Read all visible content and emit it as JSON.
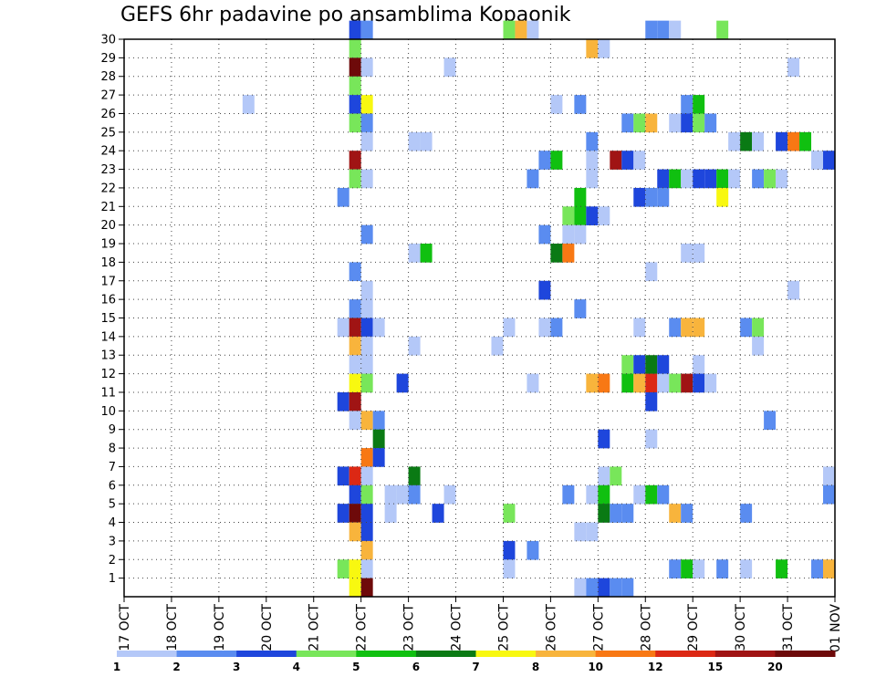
{
  "chart_data": {
    "type": "heatmap",
    "title": "GEFS 6hr padavine po ansamblima Kopaonik",
    "x_ticks": [
      "17 OCT",
      "18 OCT",
      "19 OCT",
      "20 OCT",
      "21 OCT",
      "22 OCT",
      "23 OCT",
      "24 OCT",
      "25 OCT",
      "26 OCT",
      "27 OCT",
      "28 OCT",
      "29 OCT",
      "30 OCT",
      "31 OCT",
      "01 NOV"
    ],
    "y_ticks": [
      "1",
      "2",
      "3",
      "4",
      "5",
      "6",
      "7",
      "8",
      "9",
      "10",
      "11",
      "12",
      "13",
      "14",
      "15",
      "16",
      "17",
      "18",
      "19",
      "20",
      "21",
      "22",
      "23",
      "24",
      "25",
      "26",
      "27",
      "28",
      "29",
      "30"
    ],
    "x_range": [
      "17 OCT",
      "01 NOV"
    ],
    "y_range": [
      0,
      30
    ],
    "grid": true,
    "time_step_hours": 6,
    "colorbar": {
      "labels": [
        "1",
        "2",
        "3",
        "4",
        "5",
        "6",
        "7",
        "8",
        "10",
        "12",
        "15",
        "20"
      ],
      "colors": [
        "#b4c8f8",
        "#5a8cf0",
        "#1e46dc",
        "#78e65a",
        "#10c010",
        "#0a7a14",
        "#f8f810",
        "#f8b43c",
        "#f87814",
        "#dc2814",
        "#a01414",
        "#6e0a0a"
      ]
    },
    "cells": [
      {
        "d": "21 OCT",
        "h": 18,
        "m": 30,
        "c": 2
      },
      {
        "d": "22 OCT",
        "h": 0,
        "m": 30,
        "c": 1
      },
      {
        "d": "25 OCT",
        "h": 0,
        "m": 30,
        "c": 3
      },
      {
        "d": "25 OCT",
        "h": 6,
        "m": 30,
        "c": 7
      },
      {
        "d": "25 OCT",
        "h": 12,
        "m": 30,
        "c": 0
      },
      {
        "d": "28 OCT",
        "h": 0,
        "m": 30,
        "c": 1
      },
      {
        "d": "28 OCT",
        "h": 6,
        "m": 30,
        "c": 1
      },
      {
        "d": "28 OCT",
        "h": 12,
        "m": 30,
        "c": 0
      },
      {
        "d": "29 OCT",
        "h": 12,
        "m": 30,
        "c": 3
      },
      {
        "d": "21 OCT",
        "h": 18,
        "m": 29,
        "c": 3
      },
      {
        "d": "26 OCT",
        "h": 18,
        "m": 29,
        "c": 7
      },
      {
        "d": "27 OCT",
        "h": 0,
        "m": 29,
        "c": 0
      },
      {
        "d": "21 OCT",
        "h": 18,
        "m": 28,
        "c": 11
      },
      {
        "d": "22 OCT",
        "h": 0,
        "m": 28,
        "c": 0
      },
      {
        "d": "23 OCT",
        "h": 18,
        "m": 28,
        "c": 0
      },
      {
        "d": "31 OCT",
        "h": 0,
        "m": 28,
        "c": 0
      },
      {
        "d": "21 OCT",
        "h": 18,
        "m": 27,
        "c": 3
      },
      {
        "d": "19 OCT",
        "h": 12,
        "m": 26,
        "c": 0
      },
      {
        "d": "21 OCT",
        "h": 18,
        "m": 26,
        "c": 2
      },
      {
        "d": "22 OCT",
        "h": 0,
        "m": 26,
        "c": 6
      },
      {
        "d": "26 OCT",
        "h": 0,
        "m": 26,
        "c": 0
      },
      {
        "d": "26 OCT",
        "h": 12,
        "m": 26,
        "c": 1
      },
      {
        "d": "28 OCT",
        "h": 18,
        "m": 26,
        "c": 1
      },
      {
        "d": "29 OCT",
        "h": 0,
        "m": 26,
        "c": 4
      },
      {
        "d": "21 OCT",
        "h": 18,
        "m": 25,
        "c": 3
      },
      {
        "d": "22 OCT",
        "h": 0,
        "m": 25,
        "c": 1
      },
      {
        "d": "27 OCT",
        "h": 12,
        "m": 25,
        "c": 1
      },
      {
        "d": "27 OCT",
        "h": 18,
        "m": 25,
        "c": 3
      },
      {
        "d": "28 OCT",
        "h": 0,
        "m": 25,
        "c": 7
      },
      {
        "d": "28 OCT",
        "h": 12,
        "m": 25,
        "c": 0
      },
      {
        "d": "28 OCT",
        "h": 18,
        "m": 25,
        "c": 2
      },
      {
        "d": "29 OCT",
        "h": 0,
        "m": 25,
        "c": 3
      },
      {
        "d": "29 OCT",
        "h": 6,
        "m": 25,
        "c": 1
      },
      {
        "d": "22 OCT",
        "h": 0,
        "m": 24,
        "c": 0
      },
      {
        "d": "23 OCT",
        "h": 0,
        "m": 24,
        "c": 0
      },
      {
        "d": "23 OCT",
        "h": 6,
        "m": 24,
        "c": 0
      },
      {
        "d": "26 OCT",
        "h": 18,
        "m": 24,
        "c": 1
      },
      {
        "d": "29 OCT",
        "h": 18,
        "m": 24,
        "c": 0
      },
      {
        "d": "30 OCT",
        "h": 0,
        "m": 24,
        "c": 5
      },
      {
        "d": "30 OCT",
        "h": 6,
        "m": 24,
        "c": 0
      },
      {
        "d": "30 OCT",
        "h": 18,
        "m": 24,
        "c": 2
      },
      {
        "d": "31 OCT",
        "h": 0,
        "m": 24,
        "c": 8
      },
      {
        "d": "31 OCT",
        "h": 6,
        "m": 24,
        "c": 4
      },
      {
        "d": "21 OCT",
        "h": 18,
        "m": 23,
        "c": 10
      },
      {
        "d": "25 OCT",
        "h": 18,
        "m": 23,
        "c": 1
      },
      {
        "d": "26 OCT",
        "h": 0,
        "m": 23,
        "c": 4
      },
      {
        "d": "26 OCT",
        "h": 18,
        "m": 23,
        "c": 0
      },
      {
        "d": "27 OCT",
        "h": 6,
        "m": 23,
        "c": 10
      },
      {
        "d": "27 OCT",
        "h": 12,
        "m": 23,
        "c": 2
      },
      {
        "d": "27 OCT",
        "h": 18,
        "m": 23,
        "c": 0
      },
      {
        "d": "31 OCT",
        "h": 12,
        "m": 23,
        "c": 0
      },
      {
        "d": "31 OCT",
        "h": 18,
        "m": 23,
        "c": 2
      },
      {
        "d": "21 OCT",
        "h": 18,
        "m": 22,
        "c": 3
      },
      {
        "d": "22 OCT",
        "h": 0,
        "m": 22,
        "c": 0
      },
      {
        "d": "25 OCT",
        "h": 12,
        "m": 22,
        "c": 1
      },
      {
        "d": "26 OCT",
        "h": 18,
        "m": 22,
        "c": 0
      },
      {
        "d": "28 OCT",
        "h": 6,
        "m": 22,
        "c": 2
      },
      {
        "d": "28 OCT",
        "h": 12,
        "m": 22,
        "c": 4
      },
      {
        "d": "28 OCT",
        "h": 18,
        "m": 22,
        "c": 0
      },
      {
        "d": "29 OCT",
        "h": 0,
        "m": 22,
        "c": 2
      },
      {
        "d": "29 OCT",
        "h": 6,
        "m": 22,
        "c": 2
      },
      {
        "d": "29 OCT",
        "h": 12,
        "m": 22,
        "c": 4
      },
      {
        "d": "29 OCT",
        "h": 18,
        "m": 22,
        "c": 0
      },
      {
        "d": "30 OCT",
        "h": 6,
        "m": 22,
        "c": 1
      },
      {
        "d": "30 OCT",
        "h": 12,
        "m": 22,
        "c": 3
      },
      {
        "d": "30 OCT",
        "h": 18,
        "m": 22,
        "c": 0
      },
      {
        "d": "21 OCT",
        "h": 12,
        "m": 21,
        "c": 1
      },
      {
        "d": "26 OCT",
        "h": 12,
        "m": 21,
        "c": 4
      },
      {
        "d": "27 OCT",
        "h": 18,
        "m": 21,
        "c": 2
      },
      {
        "d": "28 OCT",
        "h": 0,
        "m": 21,
        "c": 1
      },
      {
        "d": "28 OCT",
        "h": 6,
        "m": 21,
        "c": 1
      },
      {
        "d": "29 OCT",
        "h": 12,
        "m": 21,
        "c": 6
      },
      {
        "d": "26 OCT",
        "h": 6,
        "m": 20,
        "c": 3
      },
      {
        "d": "26 OCT",
        "h": 12,
        "m": 20,
        "c": 4
      },
      {
        "d": "26 OCT",
        "h": 18,
        "m": 20,
        "c": 2
      },
      {
        "d": "27 OCT",
        "h": 0,
        "m": 20,
        "c": 0
      },
      {
        "d": "22 OCT",
        "h": 0,
        "m": 19,
        "c": 1
      },
      {
        "d": "25 OCT",
        "h": 18,
        "m": 19,
        "c": 1
      },
      {
        "d": "26 OCT",
        "h": 6,
        "m": 19,
        "c": 0
      },
      {
        "d": "26 OCT",
        "h": 12,
        "m": 19,
        "c": 0
      },
      {
        "d": "23 OCT",
        "h": 0,
        "m": 18,
        "c": 0
      },
      {
        "d": "23 OCT",
        "h": 6,
        "m": 18,
        "c": 4
      },
      {
        "d": "26 OCT",
        "h": 0,
        "m": 18,
        "c": 5
      },
      {
        "d": "26 OCT",
        "h": 6,
        "m": 18,
        "c": 8
      },
      {
        "d": "28 OCT",
        "h": 18,
        "m": 18,
        "c": 0
      },
      {
        "d": "29 OCT",
        "h": 0,
        "m": 18,
        "c": 0
      },
      {
        "d": "01 NOV",
        "h": 0,
        "m": 18,
        "c": 10
      },
      {
        "d": "21 OCT",
        "h": 18,
        "m": 17,
        "c": 1
      },
      {
        "d": "28 OCT",
        "h": 0,
        "m": 17,
        "c": 0
      },
      {
        "d": "22 OCT",
        "h": 0,
        "m": 16,
        "c": 0
      },
      {
        "d": "25 OCT",
        "h": 18,
        "m": 16,
        "c": 2
      },
      {
        "d": "31 OCT",
        "h": 0,
        "m": 16,
        "c": 0
      },
      {
        "d": "21 OCT",
        "h": 18,
        "m": 15,
        "c": 1
      },
      {
        "d": "22 OCT",
        "h": 0,
        "m": 15,
        "c": 0
      },
      {
        "d": "26 OCT",
        "h": 12,
        "m": 15,
        "c": 1
      },
      {
        "d": "21 OCT",
        "h": 12,
        "m": 14,
        "c": 0
      },
      {
        "d": "21 OCT",
        "h": 18,
        "m": 14,
        "c": 10
      },
      {
        "d": "22 OCT",
        "h": 0,
        "m": 14,
        "c": 2
      },
      {
        "d": "22 OCT",
        "h": 6,
        "m": 14,
        "c": 0
      },
      {
        "d": "25 OCT",
        "h": 0,
        "m": 14,
        "c": 0
      },
      {
        "d": "25 OCT",
        "h": 18,
        "m": 14,
        "c": 0
      },
      {
        "d": "26 OCT",
        "h": 0,
        "m": 14,
        "c": 1
      },
      {
        "d": "27 OCT",
        "h": 18,
        "m": 14,
        "c": 0
      },
      {
        "d": "28 OCT",
        "h": 12,
        "m": 14,
        "c": 1
      },
      {
        "d": "28 OCT",
        "h": 18,
        "m": 14,
        "c": 7
      },
      {
        "d": "29 OCT",
        "h": 0,
        "m": 14,
        "c": 7
      },
      {
        "d": "30 OCT",
        "h": 0,
        "m": 14,
        "c": 1
      },
      {
        "d": "30 OCT",
        "h": 6,
        "m": 14,
        "c": 3
      },
      {
        "d": "21 OCT",
        "h": 18,
        "m": 13,
        "c": 7
      },
      {
        "d": "22 OCT",
        "h": 0,
        "m": 13,
        "c": 0
      },
      {
        "d": "23 OCT",
        "h": 0,
        "m": 13,
        "c": 0
      },
      {
        "d": "24 OCT",
        "h": 18,
        "m": 13,
        "c": 0
      },
      {
        "d": "30 OCT",
        "h": 6,
        "m": 13,
        "c": 0
      },
      {
        "d": "21 OCT",
        "h": 18,
        "m": 12,
        "c": 0
      },
      {
        "d": "22 OCT",
        "h": 0,
        "m": 12,
        "c": 0
      },
      {
        "d": "27 OCT",
        "h": 12,
        "m": 12,
        "c": 3
      },
      {
        "d": "27 OCT",
        "h": 18,
        "m": 12,
        "c": 2
      },
      {
        "d": "28 OCT",
        "h": 0,
        "m": 12,
        "c": 5
      },
      {
        "d": "28 OCT",
        "h": 6,
        "m": 12,
        "c": 2
      },
      {
        "d": "29 OCT",
        "h": 0,
        "m": 12,
        "c": 0
      },
      {
        "d": "21 OCT",
        "h": 18,
        "m": 11,
        "c": 6
      },
      {
        "d": "22 OCT",
        "h": 0,
        "m": 11,
        "c": 3
      },
      {
        "d": "22 OCT",
        "h": 18,
        "m": 11,
        "c": 2
      },
      {
        "d": "25 OCT",
        "h": 12,
        "m": 11,
        "c": 0
      },
      {
        "d": "26 OCT",
        "h": 18,
        "m": 11,
        "c": 7
      },
      {
        "d": "27 OCT",
        "h": 0,
        "m": 11,
        "c": 8
      },
      {
        "d": "27 OCT",
        "h": 12,
        "m": 11,
        "c": 4
      },
      {
        "d": "27 OCT",
        "h": 18,
        "m": 11,
        "c": 7
      },
      {
        "d": "28 OCT",
        "h": 0,
        "m": 11,
        "c": 9
      },
      {
        "d": "28 OCT",
        "h": 6,
        "m": 11,
        "c": 0
      },
      {
        "d": "28 OCT",
        "h": 12,
        "m": 11,
        "c": 3
      },
      {
        "d": "28 OCT",
        "h": 18,
        "m": 11,
        "c": 10
      },
      {
        "d": "29 OCT",
        "h": 0,
        "m": 11,
        "c": 2
      },
      {
        "d": "29 OCT",
        "h": 6,
        "m": 11,
        "c": 0
      },
      {
        "d": "21 OCT",
        "h": 12,
        "m": 10,
        "c": 2
      },
      {
        "d": "21 OCT",
        "h": 18,
        "m": 10,
        "c": 10
      },
      {
        "d": "28 OCT",
        "h": 0,
        "m": 10,
        "c": 2
      },
      {
        "d": "21 OCT",
        "h": 18,
        "m": 9,
        "c": 0
      },
      {
        "d": "22 OCT",
        "h": 0,
        "m": 9,
        "c": 7
      },
      {
        "d": "22 OCT",
        "h": 6,
        "m": 9,
        "c": 1
      },
      {
        "d": "30 OCT",
        "h": 12,
        "m": 9,
        "c": 1
      },
      {
        "d": "22 OCT",
        "h": 6,
        "m": 8,
        "c": 5
      },
      {
        "d": "27 OCT",
        "h": 0,
        "m": 8,
        "c": 2
      },
      {
        "d": "28 OCT",
        "h": 0,
        "m": 8,
        "c": 0
      },
      {
        "d": "22 OCT",
        "h": 0,
        "m": 7,
        "c": 8
      },
      {
        "d": "22 OCT",
        "h": 6,
        "m": 7,
        "c": 2
      },
      {
        "d": "21 OCT",
        "h": 12,
        "m": 6,
        "c": 2
      },
      {
        "d": "21 OCT",
        "h": 18,
        "m": 6,
        "c": 9
      },
      {
        "d": "22 OCT",
        "h": 0,
        "m": 6,
        "c": 0
      },
      {
        "d": "23 OCT",
        "h": 0,
        "m": 6,
        "c": 5
      },
      {
        "d": "27 OCT",
        "h": 0,
        "m": 6,
        "c": 0
      },
      {
        "d": "27 OCT",
        "h": 6,
        "m": 6,
        "c": 3
      },
      {
        "d": "31 OCT",
        "h": 18,
        "m": 6,
        "c": 0
      },
      {
        "d": "01 NOV",
        "h": 0,
        "m": 6,
        "c": 4
      },
      {
        "d": "21 OCT",
        "h": 18,
        "m": 5,
        "c": 2
      },
      {
        "d": "22 OCT",
        "h": 0,
        "m": 5,
        "c": 3
      },
      {
        "d": "22 OCT",
        "h": 12,
        "m": 5,
        "c": 0
      },
      {
        "d": "22 OCT",
        "h": 18,
        "m": 5,
        "c": 0
      },
      {
        "d": "23 OCT",
        "h": 0,
        "m": 5,
        "c": 1
      },
      {
        "d": "23 OCT",
        "h": 18,
        "m": 5,
        "c": 0
      },
      {
        "d": "26 OCT",
        "h": 6,
        "m": 5,
        "c": 1
      },
      {
        "d": "26 OCT",
        "h": 18,
        "m": 5,
        "c": 0
      },
      {
        "d": "27 OCT",
        "h": 0,
        "m": 5,
        "c": 4
      },
      {
        "d": "27 OCT",
        "h": 18,
        "m": 5,
        "c": 0
      },
      {
        "d": "28 OCT",
        "h": 0,
        "m": 5,
        "c": 4
      },
      {
        "d": "28 OCT",
        "h": 6,
        "m": 5,
        "c": 1
      },
      {
        "d": "31 OCT",
        "h": 18,
        "m": 5,
        "c": 1
      },
      {
        "d": "01 NOV",
        "h": 0,
        "m": 5,
        "c": 1
      },
      {
        "d": "21 OCT",
        "h": 12,
        "m": 4,
        "c": 2
      },
      {
        "d": "21 OCT",
        "h": 18,
        "m": 4,
        "c": 11
      },
      {
        "d": "22 OCT",
        "h": 0,
        "m": 4,
        "c": 2
      },
      {
        "d": "22 OCT",
        "h": 12,
        "m": 4,
        "c": 0
      },
      {
        "d": "23 OCT",
        "h": 12,
        "m": 4,
        "c": 2
      },
      {
        "d": "25 OCT",
        "h": 0,
        "m": 4,
        "c": 3
      },
      {
        "d": "27 OCT",
        "h": 0,
        "m": 4,
        "c": 5
      },
      {
        "d": "27 OCT",
        "h": 6,
        "m": 4,
        "c": 1
      },
      {
        "d": "27 OCT",
        "h": 12,
        "m": 4,
        "c": 1
      },
      {
        "d": "28 OCT",
        "h": 12,
        "m": 4,
        "c": 7
      },
      {
        "d": "28 OCT",
        "h": 18,
        "m": 4,
        "c": 1
      },
      {
        "d": "30 OCT",
        "h": 0,
        "m": 4,
        "c": 1
      },
      {
        "d": "21 OCT",
        "h": 18,
        "m": 3,
        "c": 7
      },
      {
        "d": "22 OCT",
        "h": 0,
        "m": 3,
        "c": 2
      },
      {
        "d": "26 OCT",
        "h": 12,
        "m": 3,
        "c": 0
      },
      {
        "d": "26 OCT",
        "h": 18,
        "m": 3,
        "c": 0
      },
      {
        "d": "22 OCT",
        "h": 0,
        "m": 2,
        "c": 7
      },
      {
        "d": "25 OCT",
        "h": 0,
        "m": 2,
        "c": 2
      },
      {
        "d": "25 OCT",
        "h": 12,
        "m": 2,
        "c": 1
      },
      {
        "d": "21 OCT",
        "h": 12,
        "m": 1,
        "c": 3
      },
      {
        "d": "21 OCT",
        "h": 18,
        "m": 1,
        "c": 6
      },
      {
        "d": "22 OCT",
        "h": 0,
        "m": 1,
        "c": 0
      },
      {
        "d": "25 OCT",
        "h": 0,
        "m": 1,
        "c": 0
      },
      {
        "d": "28 OCT",
        "h": 12,
        "m": 1,
        "c": 1
      },
      {
        "d": "28 OCT",
        "h": 18,
        "m": 1,
        "c": 4
      },
      {
        "d": "29 OCT",
        "h": 0,
        "m": 1,
        "c": 0
      },
      {
        "d": "29 OCT",
        "h": 12,
        "m": 1,
        "c": 1
      },
      {
        "d": "30 OCT",
        "h": 0,
        "m": 1,
        "c": 0
      },
      {
        "d": "30 OCT",
        "h": 18,
        "m": 1,
        "c": 4
      },
      {
        "d": "31 OCT",
        "h": 12,
        "m": 1,
        "c": 1
      },
      {
        "d": "31 OCT",
        "h": 18,
        "m": 1,
        "c": 7
      },
      {
        "d": "21 OCT",
        "h": 18,
        "m": 0,
        "c": 6
      },
      {
        "d": "22 OCT",
        "h": 0,
        "m": 0,
        "c": 11
      },
      {
        "d": "26 OCT",
        "h": 12,
        "m": 0,
        "c": 0
      },
      {
        "d": "26 OCT",
        "h": 18,
        "m": 0,
        "c": 1
      },
      {
        "d": "27 OCT",
        "h": 0,
        "m": 0,
        "c": 2
      },
      {
        "d": "27 OCT",
        "h": 6,
        "m": 0,
        "c": 1
      },
      {
        "d": "27 OCT",
        "h": 12,
        "m": 0,
        "c": 1
      }
    ]
  }
}
